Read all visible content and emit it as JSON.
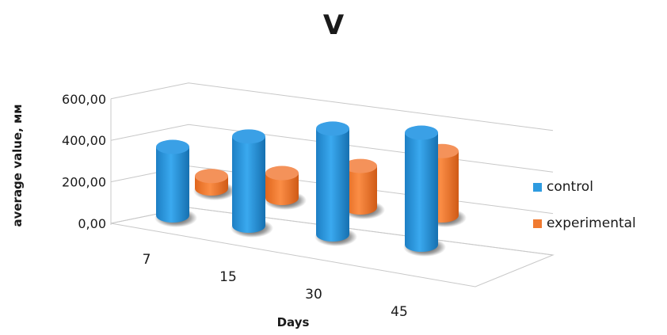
{
  "chart_data": {
    "type": "bar",
    "title": "V",
    "xlabel": "Days",
    "ylabel": "average value, мм",
    "categories": [
      "7",
      "15",
      "30",
      "45"
    ],
    "series": [
      {
        "name": "control",
        "color": "#2e9be0",
        "values": [
          330,
          430,
          510,
          540
        ]
      },
      {
        "name": "experimental",
        "color": "#f07a30",
        "values": [
          60,
          120,
          200,
          310
        ]
      }
    ],
    "ylim": [
      0,
      600
    ],
    "yticks": [
      "0,00",
      "200,00",
      "400,00",
      "600,00"
    ],
    "style": "3d-cylinder",
    "grid": true,
    "legend_position": "right"
  }
}
